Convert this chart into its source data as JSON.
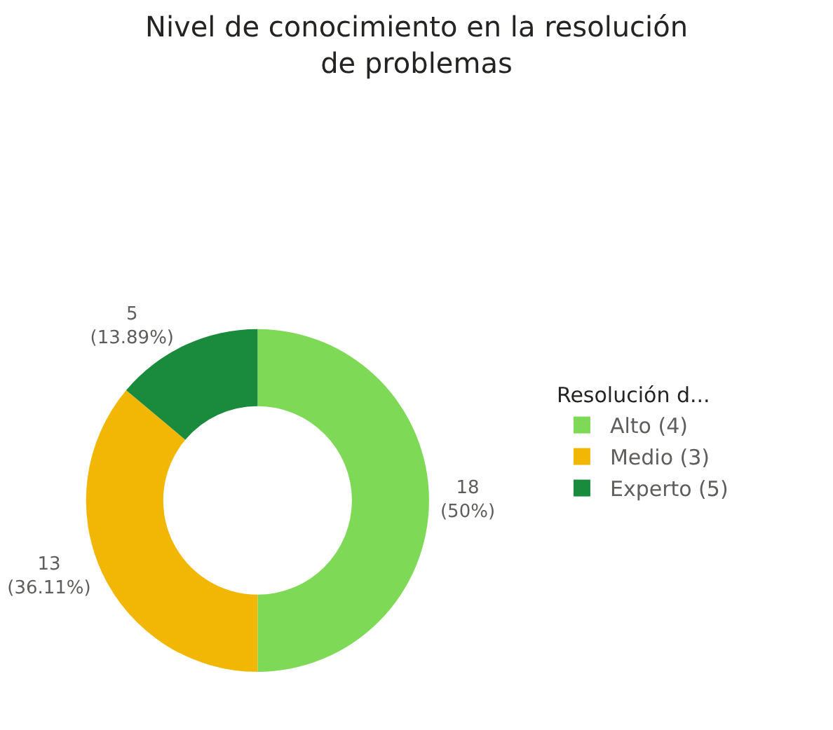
{
  "chart_data": {
    "type": "donut",
    "title": "Nivel de conocimiento en la resolución\nde problemas",
    "legend_title": "Resolución d...",
    "legend": "right",
    "categories": [
      "Alto (4)",
      "Medio (3)",
      "Experto (5)"
    ],
    "values": [
      18,
      13,
      5
    ],
    "colors": [
      "#7ed957",
      "#f2b705",
      "#1a8a3c"
    ],
    "value_labels": [
      "18\n(50%)",
      "13\n(36.11%)",
      "5\n(13.89%)"
    ]
  }
}
